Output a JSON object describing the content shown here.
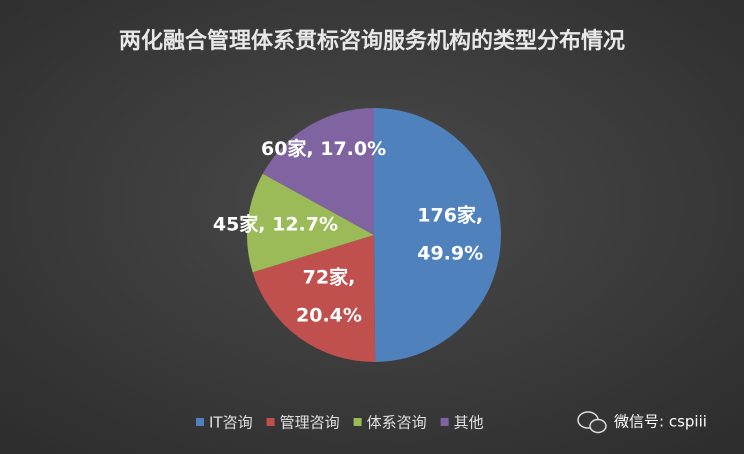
{
  "chart_data": {
    "type": "pie",
    "title": "两化融合管理体系贯标咨询服务机构的类型分布情况",
    "categories": [
      "IT咨询",
      "管理咨询",
      "体系咨询",
      "其他"
    ],
    "values": [
      176,
      72,
      45,
      60
    ],
    "value_labels": [
      "176家, 49.9%",
      "72家, 20.4%",
      "45家, 12.7%",
      "60家, 17.0%"
    ],
    "colors": [
      "#4f81bd",
      "#c0504d",
      "#9bbb59",
      "#8064a2"
    ],
    "legend": "bottom"
  },
  "watermark": "微信号: cspiii"
}
